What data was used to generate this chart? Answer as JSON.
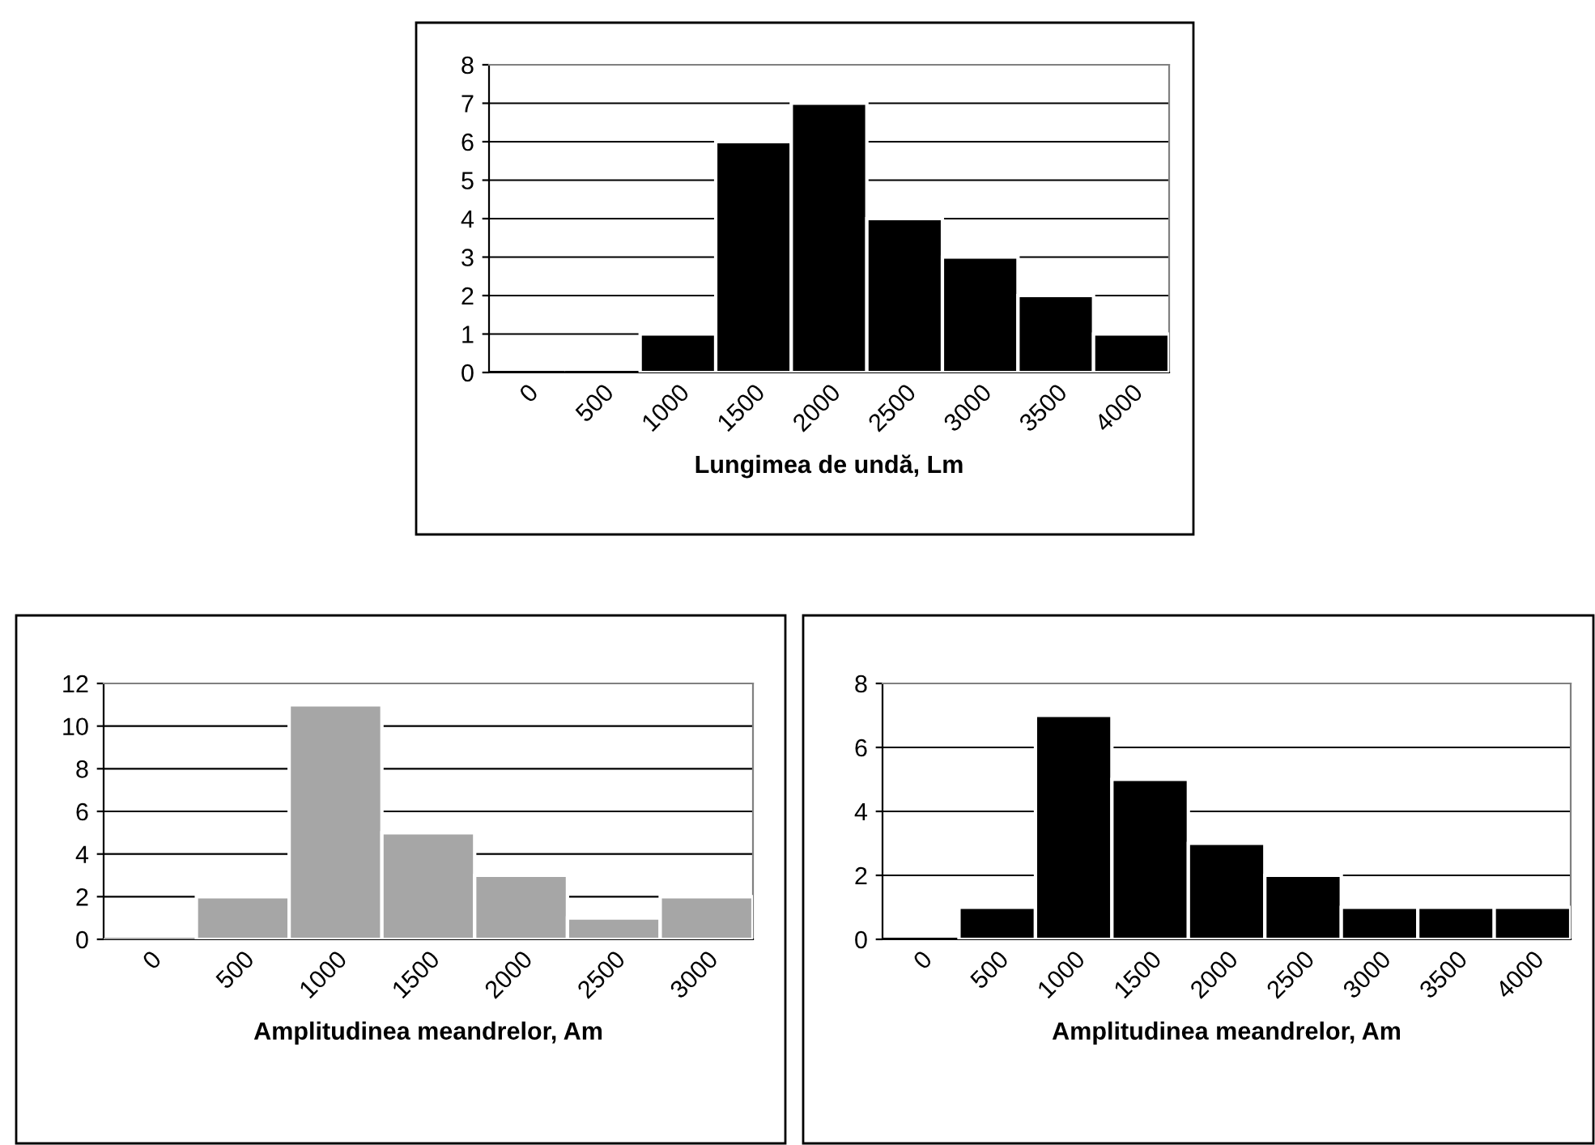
{
  "chart_data": [
    {
      "type": "bar",
      "xlabel": "Lungimea de undă, Lm",
      "categories": [
        "0",
        "500",
        "1000",
        "1500",
        "2000",
        "2500",
        "3000",
        "3500",
        "4000"
      ],
      "values": [
        0,
        0,
        1,
        6,
        7,
        4,
        3,
        2,
        1
      ],
      "color": "#000000",
      "ylim": [
        0,
        8
      ],
      "yticks": [
        0,
        1,
        2,
        3,
        4,
        5,
        6,
        7,
        8
      ],
      "grid": "y",
      "legend": false
    },
    {
      "type": "bar",
      "xlabel": "Amplitudinea meandrelor, Am",
      "categories": [
        "0",
        "500",
        "1000",
        "1500",
        "2000",
        "2500",
        "3000"
      ],
      "values": [
        0,
        2,
        11,
        5,
        3,
        1,
        2
      ],
      "color": "#a6a6a6",
      "ylim": [
        0,
        12
      ],
      "yticks": [
        0,
        2,
        4,
        6,
        8,
        10,
        12
      ],
      "grid": "y",
      "legend": false
    },
    {
      "type": "bar",
      "xlabel": "Amplitudinea meandrelor, Am",
      "categories": [
        "0",
        "500",
        "1000",
        "1500",
        "2000",
        "2500",
        "3000",
        "3500",
        "4000"
      ],
      "values": [
        0,
        1,
        7,
        5,
        3,
        2,
        1,
        1,
        1
      ],
      "color": "#000000",
      "ylim": [
        0,
        8
      ],
      "yticks": [
        0,
        2,
        4,
        6,
        8
      ],
      "grid": "y",
      "legend": false
    }
  ]
}
